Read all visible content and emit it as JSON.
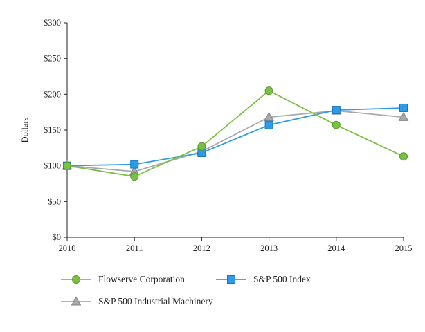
{
  "chart_data": {
    "type": "line",
    "title": "",
    "xlabel": "",
    "ylabel": "Dollars",
    "x": [
      "2010",
      "2011",
      "2012",
      "2013",
      "2014",
      "2015"
    ],
    "ylim": [
      0,
      300
    ],
    "ytick_step": 50,
    "ytick_prefix": "$",
    "ytick_labels": [
      "$0",
      "$50",
      "$100",
      "$150",
      "$200",
      "$250",
      "$300"
    ],
    "grid": false,
    "legend_position": "bottom",
    "axis_color": "#231f20",
    "series": [
      {
        "name": "Flowserve Corporation",
        "marker": "circle",
        "color": "#7AC143",
        "edge": "#569A2E",
        "values": [
          100,
          85,
          127,
          205,
          157,
          113
        ]
      },
      {
        "name": "S&P 500 Index",
        "marker": "square",
        "color": "#2E9BE6",
        "edge": "#1B75BB",
        "values": [
          100,
          102,
          118,
          157,
          178,
          181
        ]
      },
      {
        "name": "S&P 500 Industrial Machinery",
        "marker": "triangle",
        "color": "#A7A9AC",
        "edge": "#808285",
        "values": [
          100,
          92,
          120,
          168,
          177,
          168
        ]
      }
    ]
  }
}
